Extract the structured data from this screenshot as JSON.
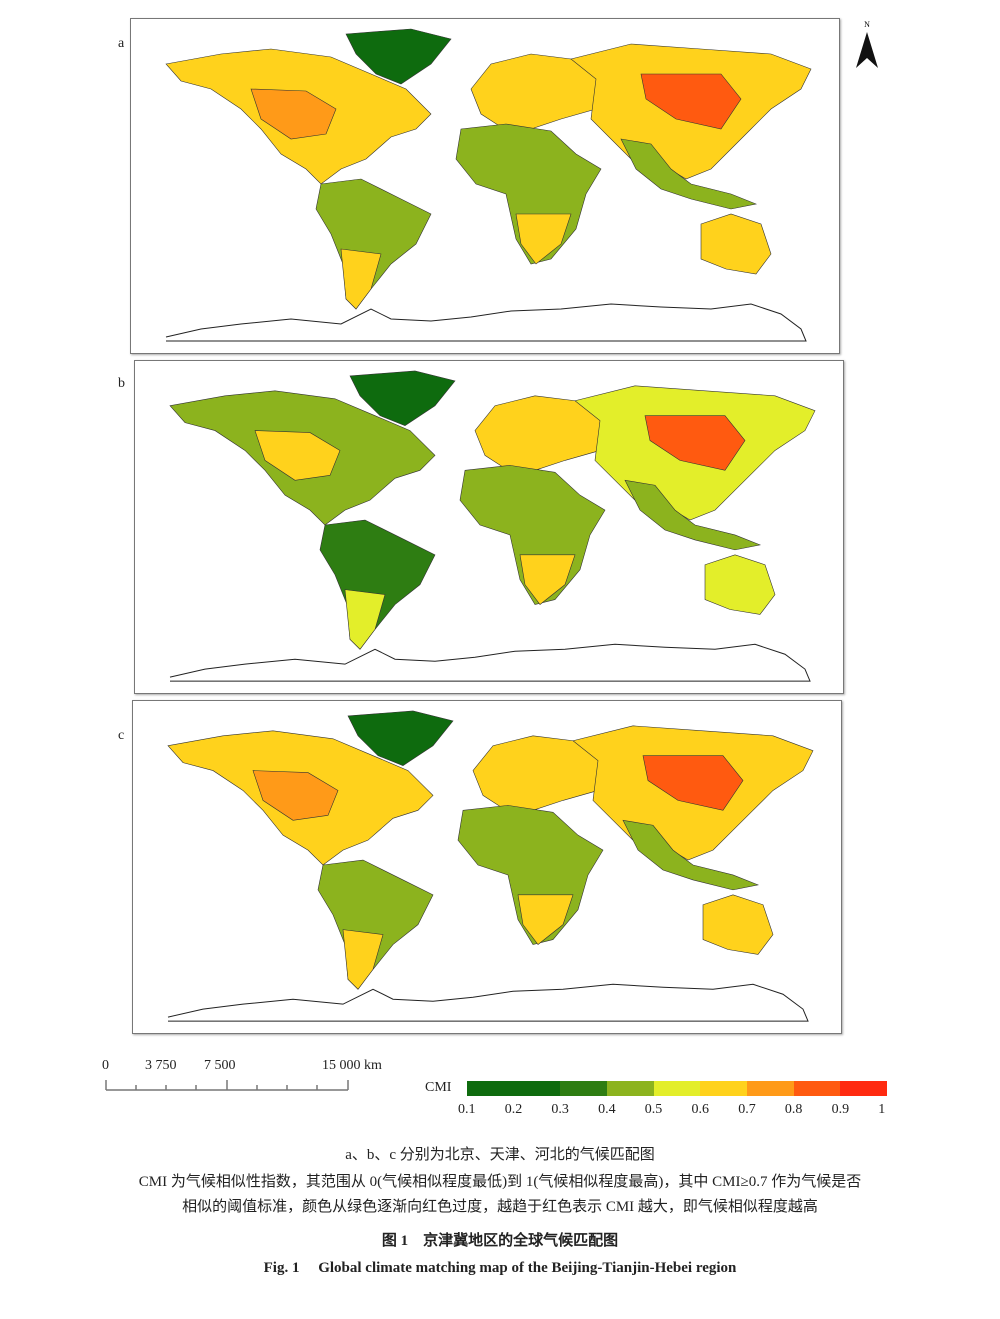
{
  "panels": [
    {
      "label": "a",
      "city": "北京",
      "levels": {
        "north_america": 0.6,
        "na_hot": 0.75,
        "greenland": 0.3,
        "south_america": 0.4,
        "sa_south": 0.6,
        "europe": 0.7,
        "africa": 0.45,
        "africa_south": 0.6,
        "asia": 0.65,
        "asia_hot": 0.85,
        "asia_south": 0.4,
        "australia": 0.6
      }
    },
    {
      "label": "b",
      "city": "天津",
      "levels": {
        "north_america": 0.45,
        "na_hot": 0.65,
        "greenland": 0.25,
        "south_america": 0.35,
        "sa_south": 0.55,
        "europe": 0.6,
        "africa": 0.4,
        "africa_south": 0.6,
        "asia": 0.5,
        "asia_hot": 0.8,
        "asia_south": 0.4,
        "australia": 0.55
      }
    },
    {
      "label": "c",
      "city": "河北",
      "levels": {
        "north_america": 0.6,
        "na_hot": 0.75,
        "greenland": 0.3,
        "south_america": 0.4,
        "sa_south": 0.6,
        "europe": 0.7,
        "africa": 0.45,
        "africa_south": 0.6,
        "asia": 0.65,
        "asia_hot": 0.85,
        "asia_south": 0.4,
        "australia": 0.6
      }
    }
  ],
  "north_arrow": "N",
  "scale_bar": {
    "ticks": [
      "0",
      "3 750",
      "7 500",
      "15 000"
    ],
    "unit": "km"
  },
  "legend": {
    "title": "CMI",
    "ticks": [
      "0.1",
      "0.2",
      "0.3",
      "0.4",
      "0.5",
      "0.6",
      "0.7",
      "0.8",
      "0.9",
      "1"
    ],
    "colors": [
      "#0e6b0e",
      "#0e6b0e",
      "#2e7d12",
      "#8cb31e",
      "#e3ee2a",
      "#ffd21c",
      "#ff9a18",
      "#ff5a10",
      "#ff2a10"
    ]
  },
  "caption": {
    "line1": "a、b、c 分别为北京、天津、河北的气候匹配图",
    "line2": "CMI 为气候相似性指数，其范围从 0(气候相似程度最低)到 1(气候相似程度最高)，其中 CMI≥0.7 作为气候是否",
    "line3": "相似的阈值标准，颜色从绿色逐渐向红色过度，越趋于红色表示 CMI 越大，即气候相似程度越高",
    "title_cn": "图 1　京津冀地区的全球气候匹配图",
    "title_en": "Fig. 1　 Global climate matching map of the Beijing-Tianjin-Hebei region"
  }
}
